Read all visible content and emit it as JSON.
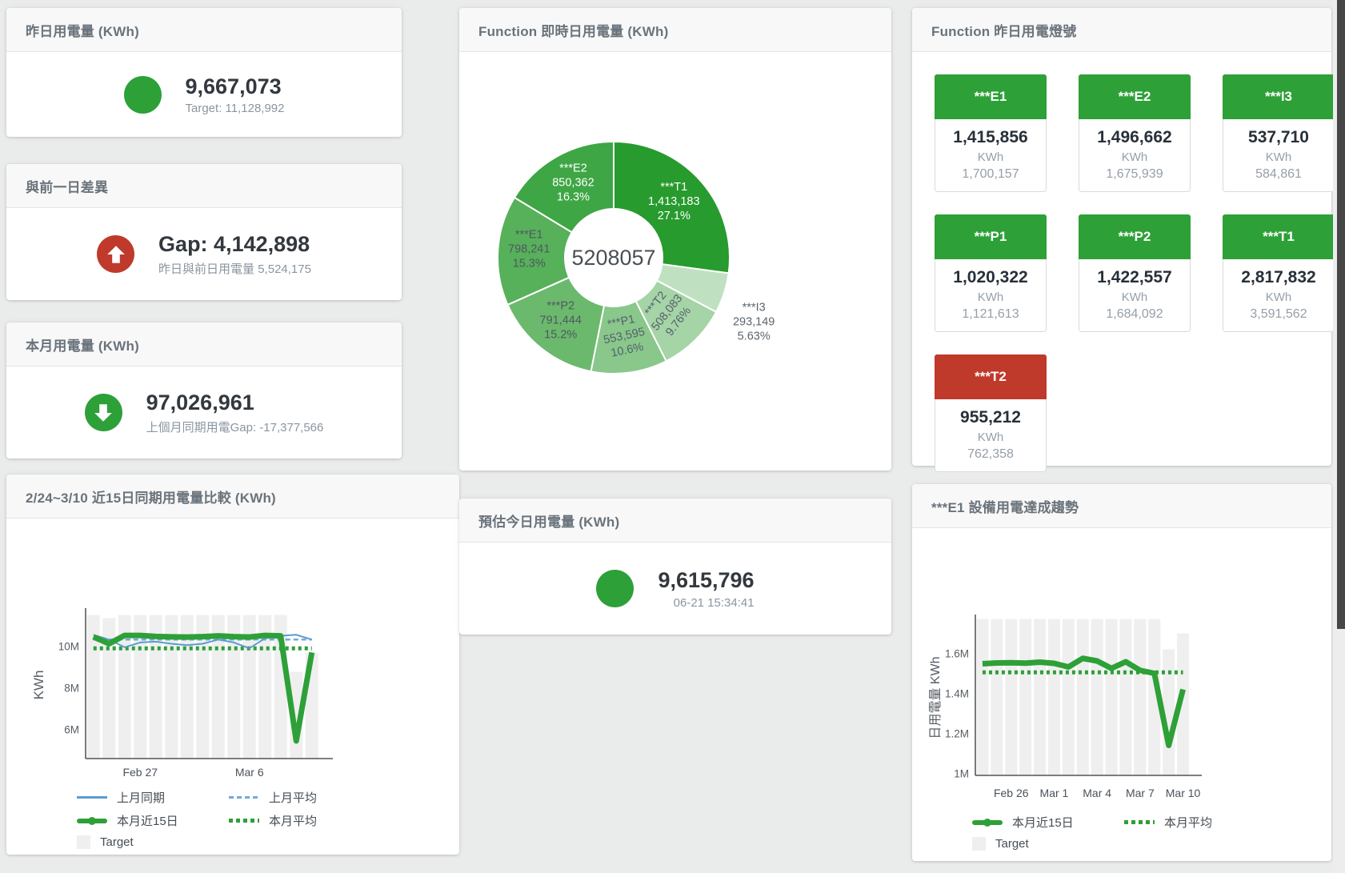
{
  "colors": {
    "green": "#2da038",
    "red": "#bf3a2b",
    "blue": "#5b9bd0",
    "blue_dash": "#74a9d8",
    "bar_fill": "#efefef",
    "axis": "#333333"
  },
  "kpi_cards": [
    {
      "title": "昨日用電量 (KWh)",
      "icon": "circle",
      "icon_color": "#2da038",
      "value": "9,667,073",
      "subtitle": "Target: 11,128,992"
    },
    {
      "title": "與前一日差異",
      "icon": "arrow-up",
      "icon_color": "#bf3a2b",
      "value": "Gap: 4,142,898",
      "subtitle": "昨日與前日用電量 5,524,175"
    },
    {
      "title": "本月用電量 (KWh)",
      "icon": "arrow-down",
      "icon_color": "#2da038",
      "value": "97,026,961",
      "subtitle": "上個月同期用電Gap: -17,377,566"
    },
    {
      "title": "預估今日用電量 (KWh)",
      "icon": "circle",
      "icon_color": "#2da038",
      "value": "9,615,796",
      "subtitle": "06-21 15:34:41"
    }
  ],
  "tiles_card": {
    "title": "Function 昨日用電燈號",
    "unit": "KWh",
    "tiles": [
      {
        "label": "***E1",
        "value": "1,415,856",
        "target": "1,700,157",
        "status": "green"
      },
      {
        "label": "***E2",
        "value": "1,496,662",
        "target": "1,675,939",
        "status": "green"
      },
      {
        "label": "***I3",
        "value": "537,710",
        "target": "584,861",
        "status": "green"
      },
      {
        "label": "***P1",
        "value": "1,020,322",
        "target": "1,121,613",
        "status": "green"
      },
      {
        "label": "***P2",
        "value": "1,422,557",
        "target": "1,684,092",
        "status": "green"
      },
      {
        "label": "***T1",
        "value": "2,817,832",
        "target": "3,591,562",
        "status": "green"
      },
      {
        "label": "***T2",
        "value": "955,212",
        "target": "762,358",
        "status": "red"
      }
    ]
  },
  "chart_data": [
    {
      "id": "realtime-donut",
      "type": "pie",
      "title": "Function 即時日用電量 (KWh)",
      "center_label": "5208057",
      "slices": [
        {
          "name": "***T1",
          "value": 1413183,
          "display": "1,413,183",
          "pct": "27.1%",
          "color": "#279b2d",
          "label_color": "#ffffff",
          "label_r": 100,
          "rot": 0
        },
        {
          "name": "***I3",
          "value": 293149,
          "display": "293,149",
          "pct": "5.63%",
          "color": "#c0e1c1",
          "label_color": "#5c666e",
          "outside": true,
          "rot": 0
        },
        {
          "name": "***T2",
          "value": 508083,
          "display": "508,083",
          "pct": "9.76%",
          "color": "#a5d4a6",
          "label_color": "#55606a",
          "label_r": 100,
          "rot": -52
        },
        {
          "name": "***P1",
          "value": 553595,
          "display": "553,595",
          "pct": "10.6%",
          "color": "#89c78b",
          "label_color": "#55606a",
          "label_r": 103,
          "rot": -12
        },
        {
          "name": "***P2",
          "value": 791444,
          "display": "791,444",
          "pct": "15.2%",
          "color": "#6bb96d",
          "label_color": "#4f5960",
          "label_r": 106,
          "rot": 0
        },
        {
          "name": "***E1",
          "value": 798241,
          "display": "798,241",
          "pct": "15.3%",
          "color": "#57b05a",
          "label_color": "#4f5960",
          "label_r": 106,
          "rot": 0
        },
        {
          "name": "***E2",
          "value": 850362,
          "display": "850,362",
          "pct": "16.3%",
          "color": "#3ea644",
          "label_color": "#ffffff",
          "label_r": 103,
          "rot": 0
        }
      ]
    },
    {
      "id": "compare-15d",
      "type": "line",
      "title": "2/24~3/10 近15日同期用電量比較 (KWh)",
      "ylabel": "KWh",
      "ymin": 4.6,
      "ymax": 11.65,
      "yticks": [
        {
          "v": 6,
          "label": "6M"
        },
        {
          "v": 8,
          "label": "8M"
        },
        {
          "v": 10,
          "label": "10M"
        }
      ],
      "xticks": [
        {
          "day": 4,
          "label": "Feb 27"
        },
        {
          "day": 11,
          "label": "Mar 6"
        }
      ],
      "target_bars": [
        11.5,
        11.35,
        11.5,
        11.5,
        11.5,
        11.5,
        11.5,
        11.5,
        11.5,
        11.5,
        11.5,
        11.5,
        11.5,
        8.77,
        9.68
      ],
      "series": [
        {
          "name": "上月平均",
          "color": "#74a9d8",
          "width": 2.5,
          "dash": "6 4",
          "const": 10.32
        },
        {
          "name": "本月平均",
          "color": "#2da038",
          "width": 5,
          "dash": "4 4",
          "const": 9.9
        },
        {
          "name": "上月同期",
          "color": "#5b9bd0",
          "width": 2,
          "dash": null,
          "values": [
            10.55,
            10.32,
            9.95,
            10.18,
            10.22,
            10.12,
            10.05,
            10.12,
            10.32,
            10.18,
            9.9,
            10.38,
            10.5,
            10.55,
            10.32
          ]
        },
        {
          "name": "本月近15日",
          "color": "#2da038",
          "width": 7,
          "dash": null,
          "values": [
            10.45,
            10.12,
            10.52,
            10.52,
            10.47,
            10.45,
            10.44,
            10.46,
            10.5,
            10.46,
            10.44,
            10.52,
            10.5,
            5.45,
            9.7
          ]
        }
      ],
      "legend": [
        [
          {
            "marker": "line",
            "color": "#5b9bd0",
            "label": "上月同期"
          },
          {
            "marker": "dash",
            "color": "#74a9d8",
            "label": "上月平均"
          }
        ],
        [
          {
            "marker": "thick",
            "color": "#2da038",
            "label": "本月近15日"
          },
          {
            "marker": "dots",
            "color": "#2da038",
            "label": "本月平均"
          }
        ],
        [
          {
            "marker": "square",
            "color": "#efefef",
            "label": "Target"
          }
        ]
      ]
    },
    {
      "id": "e1-trend",
      "type": "line",
      "title": "***E1 設備用電達成趨勢",
      "ylabel": "日用電量 KWh",
      "ymin": 0.99,
      "ymax": 1.78,
      "yticks": [
        {
          "v": 1,
          "label": "1M"
        },
        {
          "v": 1.2,
          "label": "1.2M"
        },
        {
          "v": 1.4,
          "label": "1.4M"
        },
        {
          "v": 1.6,
          "label": "1.6M"
        }
      ],
      "xticks": [
        {
          "day": 3,
          "label": "Feb 26"
        },
        {
          "day": 6,
          "label": "Mar 1"
        },
        {
          "day": 9,
          "label": "Mar 4"
        },
        {
          "day": 12,
          "label": "Mar 7"
        },
        {
          "day": 15,
          "label": "Mar 10"
        }
      ],
      "target_bars": [
        1.772,
        1.772,
        1.772,
        1.772,
        1.772,
        1.772,
        1.772,
        1.772,
        1.772,
        1.772,
        1.772,
        1.772,
        1.772,
        1.62,
        1.7
      ],
      "series": [
        {
          "name": "本月平均",
          "color": "#2da038",
          "width": 5,
          "dash": "4 4",
          "const": 1.505
        },
        {
          "name": "本月近15日",
          "color": "#2da038",
          "width": 7,
          "dash": null,
          "values": [
            1.548,
            1.552,
            1.553,
            1.551,
            1.556,
            1.55,
            1.532,
            1.575,
            1.562,
            1.525,
            1.558,
            1.515,
            1.5,
            1.14,
            1.42
          ]
        }
      ],
      "legend": [
        [
          {
            "marker": "thick",
            "color": "#2da038",
            "label": "本月近15日"
          },
          {
            "marker": "dots",
            "color": "#2da038",
            "label": "本月平均"
          }
        ],
        [
          {
            "marker": "square",
            "color": "#efefef",
            "label": "Target"
          }
        ]
      ]
    }
  ]
}
